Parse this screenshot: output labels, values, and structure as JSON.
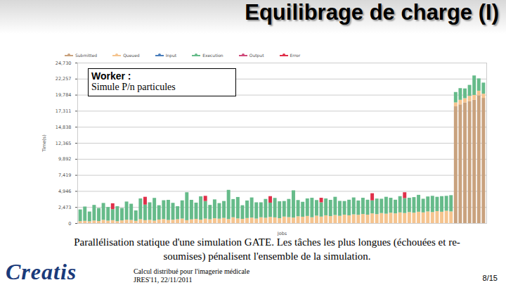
{
  "slide": {
    "title": "Equilibrage de charge (I)",
    "caption": "Parallélisation statique d'une simulation GATE. Les tâches les plus longues (échouées et re-soumises) pénalisent l'ensemble de la simulation.",
    "logo": "Creatis",
    "footer": [
      "Calcul distribué pour l'imagerie médicale",
      "JRES'11, 22/11/2011"
    ],
    "page": "8/15"
  },
  "chart_data": {
    "type": "bar",
    "stacked": true,
    "grid": true,
    "legend": "top",
    "tick_labels": "y",
    "x_label": "Jobs",
    "y_label": "Time(s)",
    "annotation": {
      "title": "Worker :",
      "text": "Simule P/n particules"
    },
    "ylim": [
      0,
      24730
    ],
    "yticks": [
      0,
      {
        "value": 2473,
        "label": "2,473"
      },
      {
        "value": 4946,
        "label": "4,946"
      },
      {
        "value": 7419,
        "label": "7,419"
      },
      {
        "value": 9892,
        "label": "9,892"
      },
      {
        "value": 12365,
        "label": "12,365"
      },
      {
        "value": 14838,
        "label": "14,838"
      },
      {
        "value": 17311,
        "label": "17,311"
      },
      {
        "value": 19784,
        "label": "19,784"
      },
      {
        "value": 22257,
        "label": "22,257"
      },
      {
        "value": 24730,
        "label": "24,730"
      }
    ],
    "categories": [
      null,
      null,
      null,
      null,
      null,
      null,
      null,
      null,
      null,
      null,
      null,
      null,
      null,
      null,
      null,
      null,
      null,
      null,
      null,
      null,
      null,
      null,
      null,
      null,
      null,
      null,
      null,
      null,
      null,
      null,
      null,
      null,
      null,
      null,
      null,
      null,
      null,
      null,
      null,
      null,
      null,
      null,
      null,
      null,
      null,
      null,
      null,
      null,
      null,
      null,
      null,
      null,
      null,
      null,
      null,
      null,
      null,
      null,
      null,
      null,
      null,
      null,
      null,
      null,
      null,
      null,
      null,
      null,
      null,
      null,
      null,
      null,
      null,
      null,
      null,
      null,
      null,
      null,
      null,
      null,
      null,
      null,
      null,
      null,
      null,
      null,
      null,
      null
    ],
    "series": [
      {
        "name": "Submitted",
        "color": "#c9a27e",
        "values": [
          0,
          0,
          0,
          0,
          0,
          0,
          0,
          0,
          0,
          0,
          0,
          0,
          0,
          0,
          0,
          0,
          0,
          0,
          0,
          0,
          0,
          0,
          0,
          0,
          0,
          0,
          0,
          0,
          0,
          0,
          0,
          0,
          0,
          0,
          0,
          0,
          0,
          0,
          0,
          0,
          0,
          0,
          0,
          0,
          0,
          0,
          0,
          0,
          0,
          0,
          0,
          0,
          0,
          0,
          0,
          0,
          0,
          0,
          0,
          0,
          0,
          0,
          0,
          0,
          0,
          0,
          0,
          0,
          0,
          0,
          0,
          0,
          0,
          0,
          0,
          0,
          0,
          0,
          0,
          0,
          0,
          18000,
          18300,
          18600,
          18800,
          19000,
          19700,
          19300
        ]
      },
      {
        "name": "Queued",
        "color": "#f5c48f",
        "values": [
          300,
          350,
          280,
          400,
          320,
          500,
          380,
          450,
          300,
          420,
          520,
          480,
          350,
          600,
          450,
          500,
          380,
          550,
          620,
          480,
          520,
          600,
          700,
          450,
          580,
          650,
          520,
          700,
          600,
          750,
          680,
          800,
          620,
          900,
          720,
          650,
          780,
          850,
          700,
          900,
          820,
          950,
          880,
          760,
          1000,
          920,
          850,
          1050,
          980,
          1100,
          900,
          1150,
          1000,
          1200,
          1080,
          1250,
          1120,
          1300,
          1200,
          1350,
          1280,
          1400,
          1300,
          1500,
          1380,
          1550,
          1450,
          1600,
          1500,
          1650,
          1550,
          1700,
          1600,
          1750,
          1650,
          1800,
          1700,
          1850,
          1750,
          1900,
          1800,
          600,
          700,
          650,
          800,
          750,
          700,
          650
        ]
      },
      {
        "name": "Input",
        "color": "#4a7ebb",
        "values": [
          0,
          0,
          0,
          0,
          0,
          0,
          0,
          0,
          0,
          0,
          0,
          0,
          0,
          0,
          0,
          0,
          0,
          0,
          0,
          0,
          0,
          0,
          0,
          0,
          0,
          0,
          0,
          0,
          0,
          0,
          0,
          0,
          0,
          0,
          0,
          0,
          0,
          0,
          0,
          0,
          0,
          0,
          0,
          0,
          0,
          0,
          0,
          0,
          0,
          0,
          0,
          0,
          0,
          0,
          0,
          0,
          0,
          0,
          0,
          0,
          0,
          0,
          0,
          0,
          0,
          0,
          0,
          0,
          0,
          0,
          0,
          0,
          0,
          0,
          0,
          0,
          0,
          0,
          0,
          0,
          0,
          0,
          0,
          0,
          0,
          0,
          0,
          0
        ]
      },
      {
        "name": "Execution",
        "color": "#66bb8a",
        "values": [
          1800,
          2200,
          1500,
          2400,
          2000,
          2600,
          2100,
          1700,
          2300,
          1900,
          2800,
          2500,
          1600,
          3200,
          2400,
          2700,
          3500,
          2200,
          2900,
          3100,
          2600,
          2000,
          2800,
          4300,
          3000,
          2500,
          3600,
          2700,
          2200,
          2900,
          2400,
          2600,
          4500,
          2800,
          3300,
          2100,
          2700,
          3100,
          2500,
          2300,
          2900,
          2200,
          3000,
          2600,
          2400,
          2800,
          4200,
          2500,
          2300,
          2700,
          3000,
          2400,
          2200,
          2600,
          2500,
          2800,
          2300,
          2100,
          2400,
          2600,
          2200,
          2500,
          2300,
          2000,
          2400,
          2200,
          2600,
          2300,
          2100,
          2500,
          2300,
          2200,
          2400,
          2600,
          2100,
          2300,
          2500,
          2200,
          2400,
          2300,
          2500,
          1600,
          1800,
          1500,
          1700,
          3000,
          1900,
          1700
        ]
      },
      {
        "name": "Output",
        "color": "#d04a7a",
        "values": [
          0,
          0,
          0,
          0,
          0,
          0,
          0,
          0,
          0,
          0,
          0,
          0,
          0,
          0,
          0,
          0,
          0,
          0,
          0,
          0,
          0,
          0,
          0,
          0,
          0,
          0,
          0,
          0,
          0,
          0,
          0,
          0,
          0,
          0,
          0,
          0,
          0,
          0,
          0,
          0,
          0,
          0,
          0,
          0,
          0,
          0,
          0,
          0,
          0,
          0,
          0,
          0,
          0,
          0,
          0,
          0,
          0,
          0,
          0,
          0,
          0,
          0,
          0,
          0,
          0,
          0,
          0,
          0,
          0,
          0,
          0,
          0,
          0,
          0,
          0,
          0,
          0,
          0,
          0,
          0,
          0,
          0,
          0,
          0,
          0,
          0,
          0,
          0
        ]
      },
      {
        "name": "Error",
        "color": "#e0304a",
        "values": [
          0,
          0,
          0,
          0,
          0,
          0,
          0,
          900,
          0,
          0,
          0,
          0,
          0,
          0,
          1200,
          0,
          0,
          0,
          0,
          0,
          0,
          0,
          0,
          0,
          0,
          0,
          0,
          800,
          0,
          0,
          0,
          0,
          0,
          0,
          0,
          0,
          0,
          0,
          0,
          0,
          0,
          1000,
          0,
          0,
          0,
          0,
          0,
          0,
          0,
          0,
          0,
          0,
          700,
          0,
          0,
          0,
          0,
          0,
          0,
          0,
          0,
          0,
          0,
          1100,
          0,
          0,
          0,
          0,
          0,
          0,
          900,
          0,
          0,
          0,
          0,
          0,
          0,
          0,
          0,
          0,
          0,
          0,
          0,
          0,
          0,
          0,
          0,
          0
        ]
      }
    ]
  }
}
